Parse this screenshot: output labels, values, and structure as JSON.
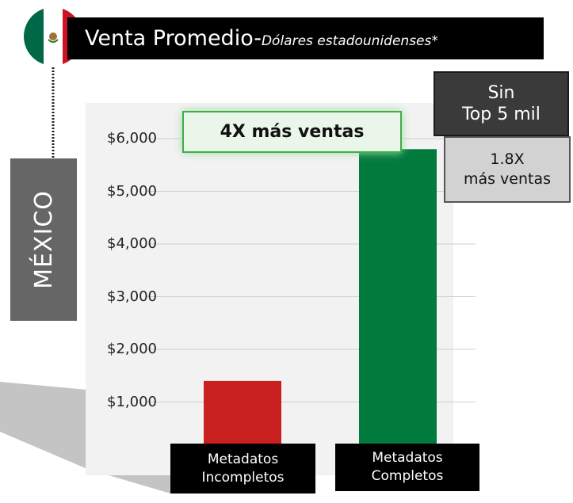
{
  "chart_data": {
    "type": "bar",
    "title": "Venta Promedio-",
    "subtitle": "Dólares estadounidenses*",
    "country": "MÉXICO",
    "categories": [
      "Metadatos\nIncompletos",
      "Metadatos\nCompletos"
    ],
    "values": [
      1400,
      5800
    ],
    "colors": [
      "#c8201e",
      "#007a3d"
    ],
    "ylim": [
      0,
      6000
    ],
    "yticks": [
      {
        "value": 1000,
        "label": "$1,000"
      },
      {
        "value": 2000,
        "label": "$2,000"
      },
      {
        "value": 3000,
        "label": "$3,000"
      },
      {
        "value": 4000,
        "label": "$4,000"
      },
      {
        "value": 5000,
        "label": "$5,000"
      },
      {
        "value": 6000,
        "label": "$6,000"
      }
    ],
    "grid": true,
    "annotations": [
      "4X más ventas",
      "Sin\nTop 5 mil",
      "1.8X\nmás ventas"
    ]
  }
}
